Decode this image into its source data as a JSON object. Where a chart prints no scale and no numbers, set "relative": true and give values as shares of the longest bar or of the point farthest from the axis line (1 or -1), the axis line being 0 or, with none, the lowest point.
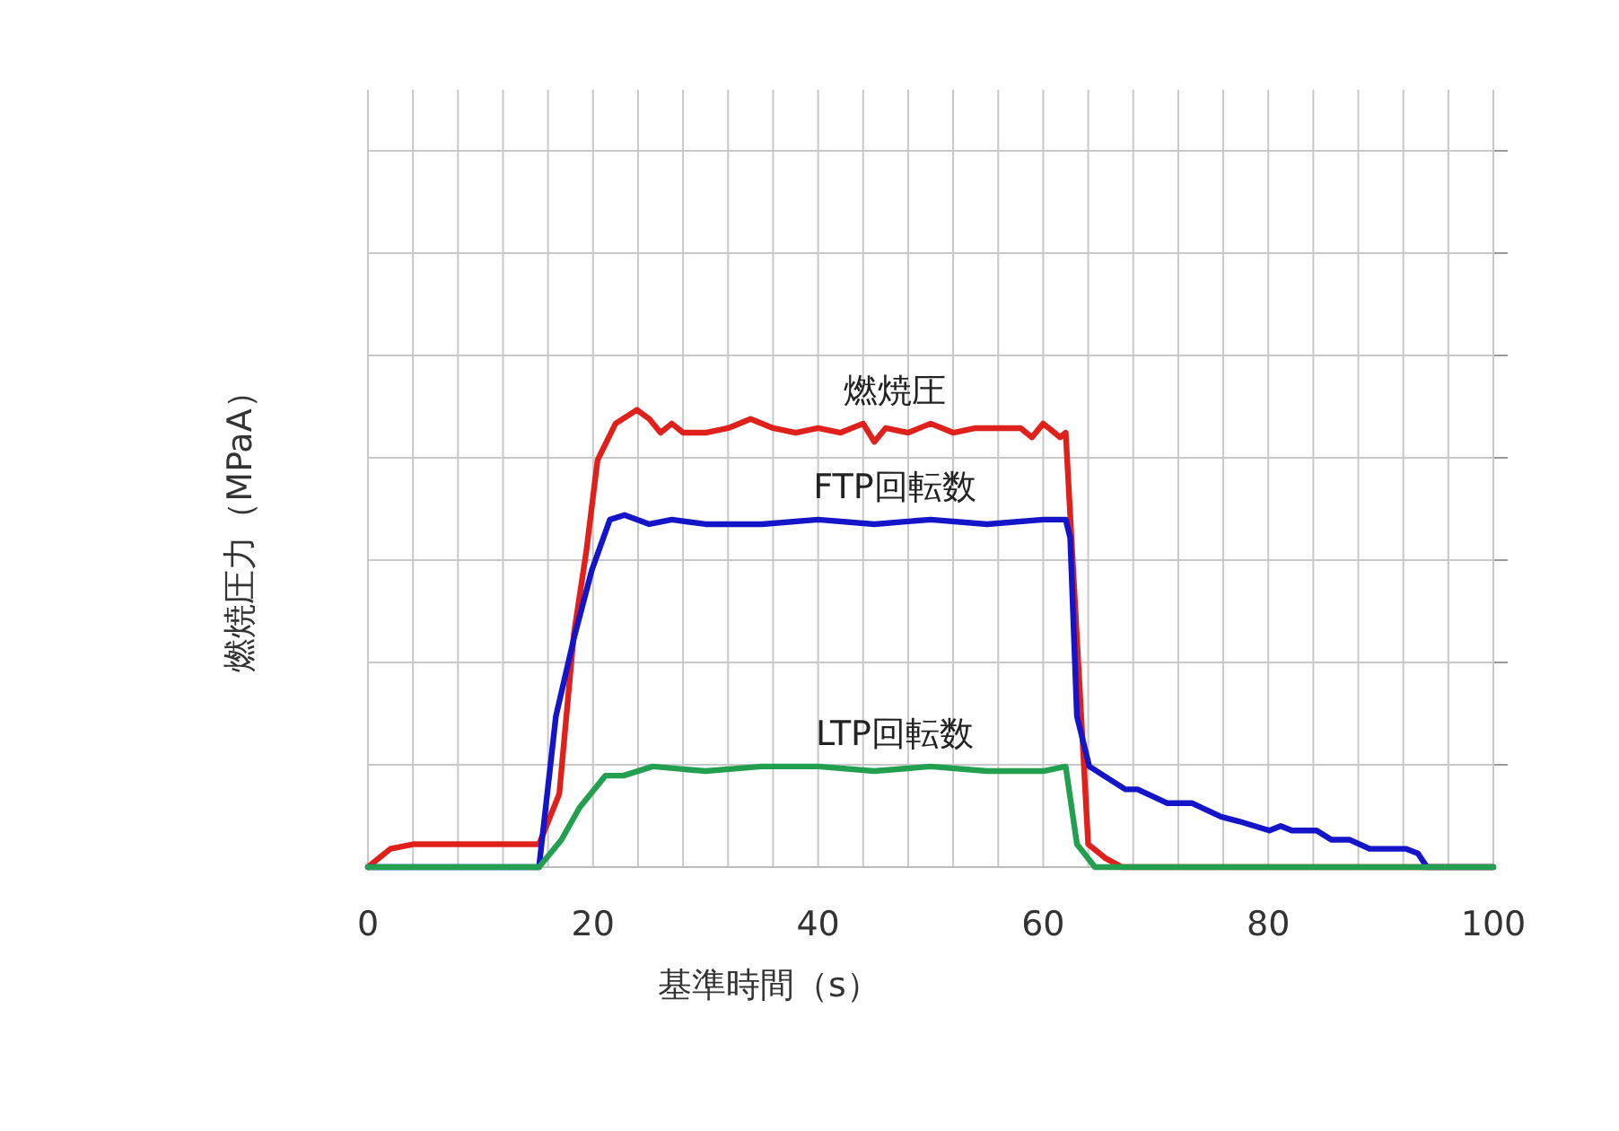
{
  "chart_data": {
    "type": "line",
    "relative": true,
    "xlabel": "基準時間（s）",
    "ylabel": "燃焼圧力（MPaA）",
    "grid": true,
    "xlim": [
      0,
      100
    ],
    "xticks": [
      0,
      {
        "value": 4,
        "label": null
      },
      {
        "value": 8,
        "label": null
      },
      {
        "value": 12,
        "label": null
      },
      {
        "value": 16,
        "label": null
      },
      20,
      {
        "value": 24,
        "label": null
      },
      {
        "value": 28,
        "label": null
      },
      {
        "value": 32,
        "label": null
      },
      {
        "value": 36,
        "label": null
      },
      40,
      {
        "value": 44,
        "label": null
      },
      {
        "value": 48,
        "label": null
      },
      {
        "value": 52,
        "label": null
      },
      {
        "value": 56,
        "label": null
      },
      60,
      {
        "value": 64,
        "label": null
      },
      {
        "value": 68,
        "label": null
      },
      {
        "value": 72,
        "label": null
      },
      {
        "value": 76,
        "label": null
      },
      80,
      {
        "value": 84,
        "label": null
      },
      {
        "value": 88,
        "label": null
      },
      {
        "value": 92,
        "label": null
      },
      {
        "value": 96,
        "label": null
      },
      100
    ],
    "series": [
      {
        "name": "燃焼圧",
        "color": "#e0201b",
        "x": [
          0,
          1,
          2,
          4,
          15.2,
          17,
          18.3,
          19.4,
          20.4,
          22,
          23.9,
          25,
          26,
          27,
          28,
          30,
          32,
          34,
          36,
          38,
          40,
          42,
          44,
          45,
          46,
          48,
          50,
          52,
          54,
          56,
          58,
          59,
          60,
          61,
          61.5,
          62,
          63,
          64,
          65.5,
          67,
          100
        ],
        "values": [
          0,
          0.02,
          0.04,
          0.05,
          0.05,
          0.16,
          0.51,
          0.69,
          0.89,
          0.97,
          1,
          0.98,
          0.95,
          0.97,
          0.95,
          0.95,
          0.96,
          0.98,
          0.96,
          0.95,
          0.96,
          0.95,
          0.97,
          0.93,
          0.96,
          0.95,
          0.97,
          0.95,
          0.96,
          0.96,
          0.96,
          0.94,
          0.97,
          0.95,
          0.94,
          0.95,
          0.5,
          0.05,
          0.02,
          0,
          0
        ]
      },
      {
        "name": "FTP回転数",
        "color": "#1414c8",
        "x": [
          0,
          15.2,
          16.7,
          18.3,
          19.9,
          21.5,
          22.8,
          25,
          27,
          30,
          35,
          40,
          45,
          50,
          55,
          60,
          62,
          62.4,
          63,
          64.1,
          67.3,
          68.4,
          71,
          73.2,
          75.8,
          77.4,
          80.1,
          81.1,
          82.1,
          84.3,
          85.6,
          87.2,
          89,
          92.2,
          93.3,
          94.1,
          100
        ],
        "values": [
          0,
          0,
          0.33,
          0.5,
          0.65,
          0.76,
          0.77,
          0.75,
          0.76,
          0.75,
          0.75,
          0.76,
          0.75,
          0.76,
          0.75,
          0.76,
          0.76,
          0.72,
          0.33,
          0.22,
          0.17,
          0.17,
          0.14,
          0.14,
          0.11,
          0.1,
          0.08,
          0.09,
          0.08,
          0.08,
          0.06,
          0.06,
          0.04,
          0.04,
          0.03,
          0,
          0
        ]
      },
      {
        "name": "LTP回転数",
        "color": "#22a050",
        "x": [
          0,
          15.2,
          17.2,
          18.8,
          21.1,
          22.7,
          25.3,
          30,
          35,
          40,
          45,
          50,
          55,
          60,
          62,
          63,
          64.6,
          100
        ],
        "values": [
          0,
          0,
          0.06,
          0.13,
          0.2,
          0.2,
          0.22,
          0.21,
          0.22,
          0.22,
          0.21,
          0.22,
          0.21,
          0.21,
          0.22,
          0.05,
          0,
          0
        ]
      }
    ]
  }
}
